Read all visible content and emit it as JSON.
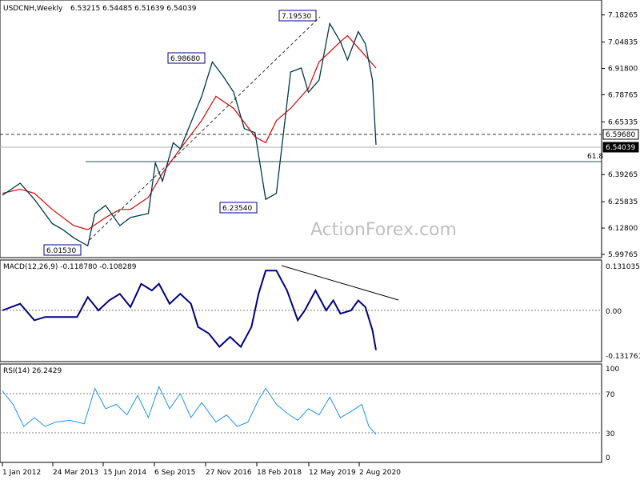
{
  "header": {
    "symbol_label": "USDCNH,Weekly",
    "ohlc_label": "6.53215 6.54485 6.51639 6.54039",
    "watermark": "ActionForex.com"
  },
  "colors": {
    "price": "#00364d",
    "sma": "#e00000",
    "macd": "#000080",
    "rsi": "#1e90ff",
    "grid": "#808080"
  },
  "chart_data": [
    {
      "type": "line",
      "title": "USDCNH,Weekly",
      "ylim": [
        5.99765,
        7.2327
      ],
      "price_ticks": [
        "7.18265",
        "7.04835",
        "6.91800",
        "6.78765",
        "6.65335",
        "6.39265",
        "6.25835",
        "6.12800",
        "5.99765"
      ],
      "x_tick_labels": [
        "1 Jan 2012",
        "24 Mar 2013",
        "15 Jun 2014",
        "6 Sep 2015",
        "27 Nov 2016",
        "18 Feb 2018",
        "12 May 2019",
        "2 Aug 2020"
      ],
      "price_boxes": [
        "6.59680",
        "6.54039"
      ],
      "swing_labels": [
        "6.01530",
        "6.98680",
        "6.23540",
        "7.19530"
      ],
      "fib_label": "61.8",
      "series": [
        {
          "name": "price",
          "x": [
            "2012-01",
            "2012-06",
            "2012-10",
            "2013-03",
            "2013-06",
            "2013-09",
            "2014-01",
            "2014-03",
            "2014-06",
            "2014-10",
            "2015-01",
            "2015-06",
            "2015-08",
            "2015-10",
            "2016-01",
            "2016-03",
            "2016-06",
            "2016-09",
            "2016-12",
            "2017-03",
            "2017-06",
            "2017-09",
            "2017-12",
            "2018-03",
            "2018-06",
            "2018-10",
            "2019-01",
            "2019-03",
            "2019-06",
            "2019-09",
            "2019-12",
            "2020-02",
            "2020-05",
            "2020-07",
            "2020-09",
            "2020-10"
          ],
          "values": [
            6.29,
            6.35,
            6.27,
            6.15,
            6.12,
            6.08,
            6.04,
            6.2,
            6.24,
            6.14,
            6.18,
            6.2,
            6.45,
            6.36,
            6.55,
            6.52,
            6.65,
            6.78,
            6.95,
            6.88,
            6.8,
            6.62,
            6.6,
            6.27,
            6.3,
            6.9,
            6.92,
            6.8,
            6.86,
            7.14,
            7.05,
            6.96,
            7.1,
            7.04,
            6.86,
            6.54
          ]
        },
        {
          "name": "sma",
          "x": [
            "2012-01",
            "2012-06",
            "2012-10",
            "2013-03",
            "2013-09",
            "2014-01",
            "2014-06",
            "2014-10",
            "2015-01",
            "2015-06",
            "2015-10",
            "2016-03",
            "2016-09",
            "2017-01",
            "2017-06",
            "2017-12",
            "2018-03",
            "2018-06",
            "2018-10",
            "2019-03",
            "2019-06",
            "2019-09",
            "2019-12",
            "2020-02",
            "2020-05",
            "2020-10"
          ],
          "values": [
            6.3,
            6.32,
            6.3,
            6.22,
            6.14,
            6.12,
            6.18,
            6.22,
            6.22,
            6.28,
            6.4,
            6.52,
            6.66,
            6.78,
            6.72,
            6.58,
            6.55,
            6.66,
            6.72,
            6.82,
            6.95,
            7.0,
            7.05,
            7.08,
            7.02,
            6.92
          ]
        }
      ]
    },
    {
      "type": "line",
      "title": "MACD(12,26,9) -0.118780 -0.108289",
      "ylim": [
        -0.145,
        0.14
      ],
      "ticks": [
        "0.131035",
        "0.00",
        "-0.131761"
      ],
      "series": [
        {
          "name": "MACD",
          "x": [
            "2012-01",
            "2012-06",
            "2012-10",
            "2013-01",
            "2013-06",
            "2013-10",
            "2014-01",
            "2014-04",
            "2014-07",
            "2014-10",
            "2015-01",
            "2015-04",
            "2015-07",
            "2015-09",
            "2015-12",
            "2016-03",
            "2016-06",
            "2016-08",
            "2016-11",
            "2017-02",
            "2017-05",
            "2017-08",
            "2017-11",
            "2018-01",
            "2018-03",
            "2018-06",
            "2018-09",
            "2018-12",
            "2019-02",
            "2019-05",
            "2019-08",
            "2019-10",
            "2019-12",
            "2020-03",
            "2020-05",
            "2020-07",
            "2020-09",
            "2020-10"
          ],
          "values": [
            0.0,
            0.02,
            -0.03,
            -0.02,
            -0.02,
            -0.02,
            0.04,
            0.0,
            0.03,
            0.05,
            0.01,
            0.08,
            0.06,
            0.08,
            0.02,
            0.05,
            0.02,
            -0.05,
            -0.07,
            -0.11,
            -0.08,
            -0.11,
            -0.05,
            0.05,
            0.12,
            0.12,
            0.06,
            -0.03,
            0.0,
            0.06,
            0.0,
            0.03,
            -0.01,
            0.0,
            0.03,
            0.01,
            -0.06,
            -0.12
          ]
        }
      ]
    },
    {
      "type": "line",
      "title": "RSI(14) 26.2429",
      "ylim": [
        0,
        100
      ],
      "ticks": [
        "100",
        "70",
        "30",
        "0"
      ],
      "series": [
        {
          "name": "RSI(14)",
          "x": [
            "2012-01",
            "2012-04",
            "2012-07",
            "2012-10",
            "2013-01",
            "2013-04",
            "2013-08",
            "2013-12",
            "2014-03",
            "2014-06",
            "2014-09",
            "2014-12",
            "2015-03",
            "2015-06",
            "2015-09",
            "2015-12",
            "2016-03",
            "2016-06",
            "2016-09",
            "2017-01",
            "2017-04",
            "2017-07",
            "2017-10",
            "2018-01",
            "2018-03",
            "2018-06",
            "2018-09",
            "2018-12",
            "2019-03",
            "2019-06",
            "2019-09",
            "2019-12",
            "2020-03",
            "2020-06",
            "2020-08",
            "2020-10"
          ],
          "values": [
            75,
            60,
            35,
            45,
            35,
            40,
            42,
            38,
            78,
            55,
            60,
            48,
            70,
            45,
            80,
            55,
            72,
            45,
            62,
            40,
            48,
            35,
            40,
            65,
            78,
            60,
            50,
            42,
            55,
            48,
            68,
            45,
            52,
            60,
            35,
            26
          ]
        }
      ]
    }
  ]
}
